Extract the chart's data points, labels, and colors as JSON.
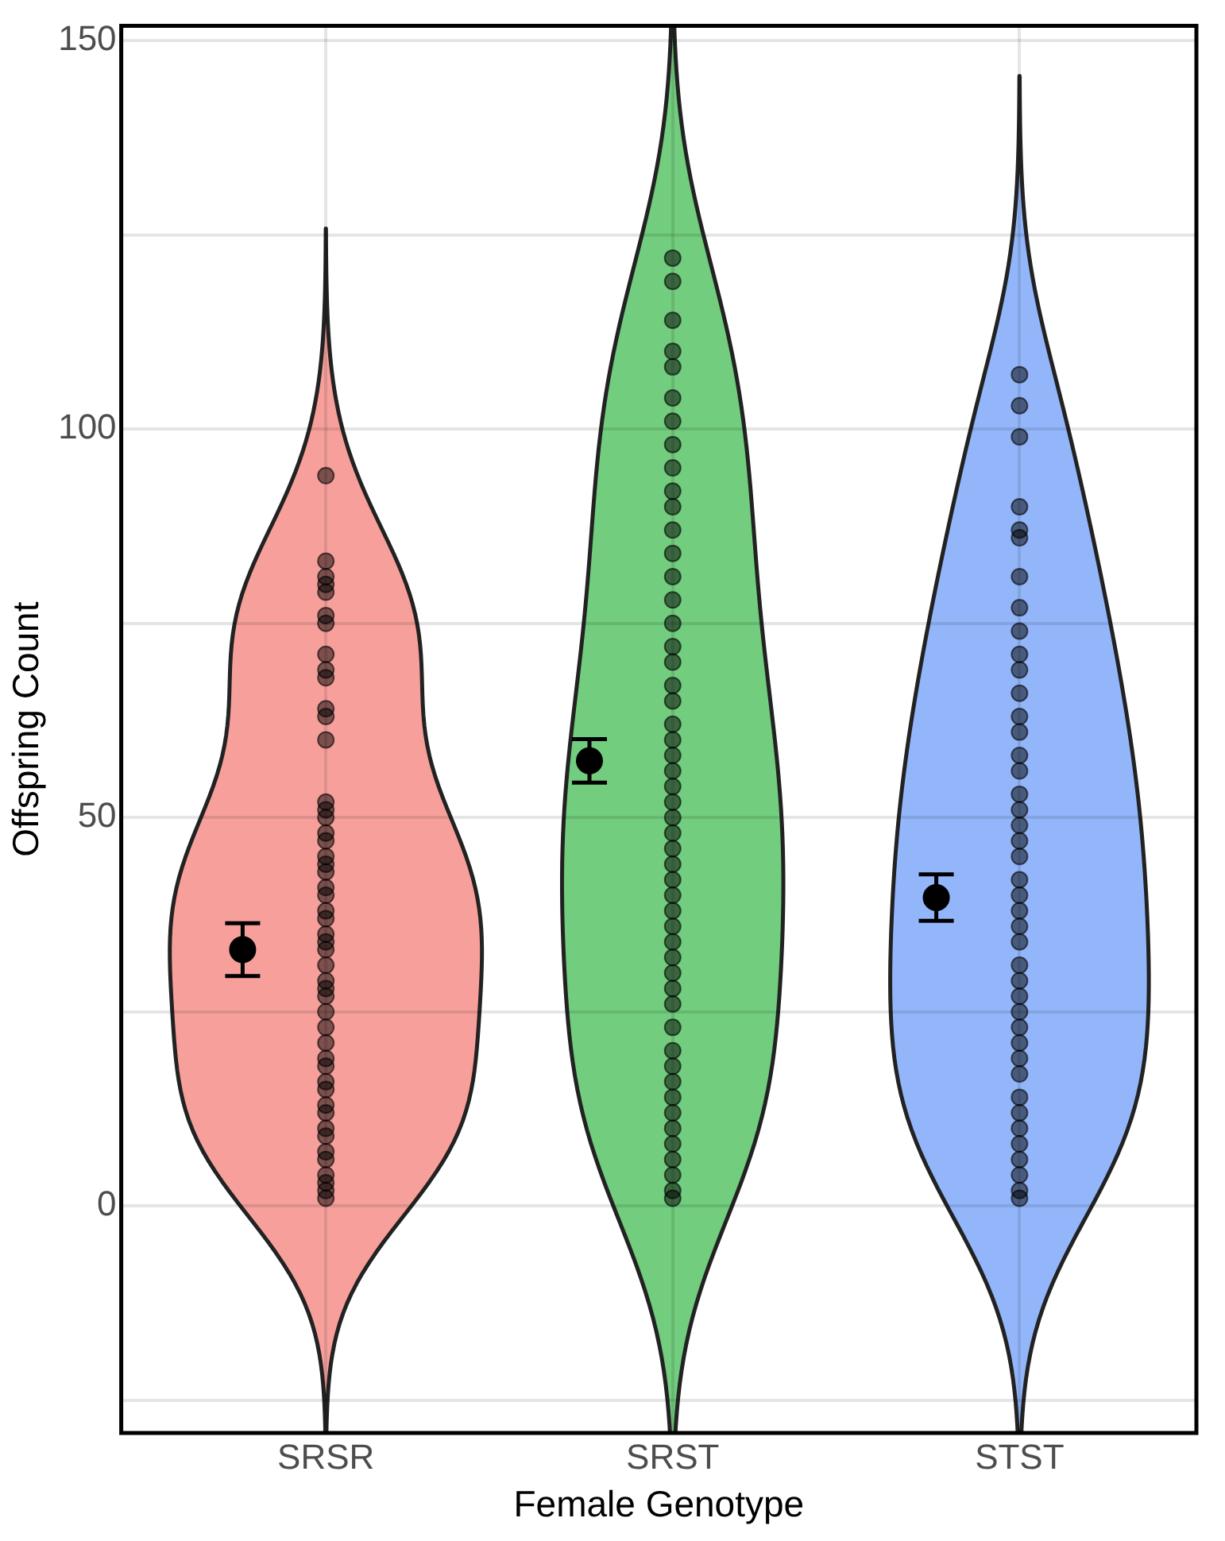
{
  "chart_data": {
    "type": "scatter",
    "xlabel": "Female Genotype",
    "ylabel": "Offspring Count",
    "categories": [
      "SRSR",
      "SRST",
      "STST"
    ],
    "colors": [
      "#f7a09b",
      "#72cd7e",
      "#93b6fb"
    ],
    "ylim": [
      -29.2,
      151.9
    ],
    "yticks": [
      {
        "value": -25,
        "label": null
      },
      0,
      {
        "value": 25,
        "label": null
      },
      50,
      {
        "value": 75,
        "label": null
      },
      100,
      {
        "value": 125,
        "label": null
      },
      150
    ],
    "grid": true,
    "marker": "circle",
    "series": [
      {
        "color": "#000000",
        "x": [
          "SRSR",
          "SRSR",
          "SRSR",
          "SRSR",
          "SRSR",
          "SRSR",
          "SRSR",
          "SRSR",
          "SRSR",
          "SRSR",
          "SRSR",
          "SRSR",
          "SRSR",
          "SRSR",
          "SRSR",
          "SRSR",
          "SRSR",
          "SRSR",
          "SRSR",
          "SRSR",
          "SRSR",
          "SRSR",
          "SRSR",
          "SRSR",
          "SRSR",
          "SRSR",
          "SRSR",
          "SRSR",
          "SRSR",
          "SRSR",
          "SRSR",
          "SRSR",
          "SRSR",
          "SRSR",
          "SRSR",
          "SRSR",
          "SRSR",
          "SRSR",
          "SRSR",
          "SRSR",
          "SRSR",
          "SRSR",
          "SRSR",
          "SRSR",
          "SRSR",
          "SRSR",
          "SRSR",
          "SRSR",
          "SRSR"
        ],
        "values": [
          94,
          81,
          83,
          80,
          79,
          76,
          75,
          71,
          68,
          69,
          64,
          63,
          60,
          52,
          51,
          50,
          48,
          47,
          45,
          44,
          43,
          41,
          40,
          38,
          37,
          35,
          34,
          33,
          31,
          29,
          28,
          27,
          25,
          23,
          21,
          19,
          18,
          16,
          15,
          13,
          12,
          10,
          9,
          7,
          6,
          4,
          3,
          2,
          1
        ]
      },
      {
        "color": "#000000",
        "x": [
          "SRST",
          "SRST",
          "SRST",
          "SRST",
          "SRST",
          "SRST",
          "SRST",
          "SRST",
          "SRST",
          "SRST",
          "SRST",
          "SRST",
          "SRST",
          "SRST",
          "SRST",
          "SRST",
          "SRST",
          "SRST",
          "SRST",
          "SRST",
          "SRST",
          "SRST",
          "SRST",
          "SRST",
          "SRST",
          "SRST",
          "SRST",
          "SRST",
          "SRST",
          "SRST",
          "SRST",
          "SRST",
          "SRST",
          "SRST",
          "SRST",
          "SRST",
          "SRST",
          "SRST",
          "SRST",
          "SRST",
          "SRST",
          "SRST",
          "SRST",
          "SRST",
          "SRST",
          "SRST",
          "SRST",
          "SRST",
          "SRST",
          "SRST",
          "SRST"
        ],
        "values": [
          122,
          119,
          114,
          110,
          108,
          104,
          101,
          98,
          95,
          92,
          90,
          87,
          84,
          81,
          78,
          75,
          72,
          70,
          67,
          65,
          62,
          60,
          58,
          56,
          54,
          52,
          50,
          48,
          46,
          44,
          42,
          40,
          38,
          36,
          34,
          32,
          30,
          28,
          26,
          23,
          20,
          18,
          16,
          14,
          12,
          10,
          8,
          6,
          4,
          2,
          1
        ]
      },
      {
        "color": "#000000",
        "x": [
          "STST",
          "STST",
          "STST",
          "STST",
          "STST",
          "STST",
          "STST",
          "STST",
          "STST",
          "STST",
          "STST",
          "STST",
          "STST",
          "STST",
          "STST",
          "STST",
          "STST",
          "STST",
          "STST",
          "STST",
          "STST",
          "STST",
          "STST",
          "STST",
          "STST",
          "STST",
          "STST",
          "STST",
          "STST",
          "STST",
          "STST",
          "STST",
          "STST",
          "STST",
          "STST",
          "STST",
          "STST",
          "STST",
          "STST",
          "STST",
          "STST",
          "STST"
        ],
        "values": [
          107,
          103,
          99,
          90,
          87,
          86,
          81,
          77,
          74,
          71,
          69,
          66,
          63,
          61,
          58,
          56,
          53,
          51,
          49,
          47,
          45,
          42,
          40,
          38,
          36,
          34,
          31,
          29,
          27,
          25,
          23,
          21,
          19,
          17,
          14,
          12,
          10,
          8,
          6,
          4,
          2,
          1
        ]
      },
      {
        "color": "#000000",
        "x": [
          "SRSR",
          "SRST",
          "STST"
        ],
        "values": [
          33,
          57.3,
          39.7
        ],
        "errors": [
          3.4,
          2.8,
          3
        ]
      }
    ]
  }
}
